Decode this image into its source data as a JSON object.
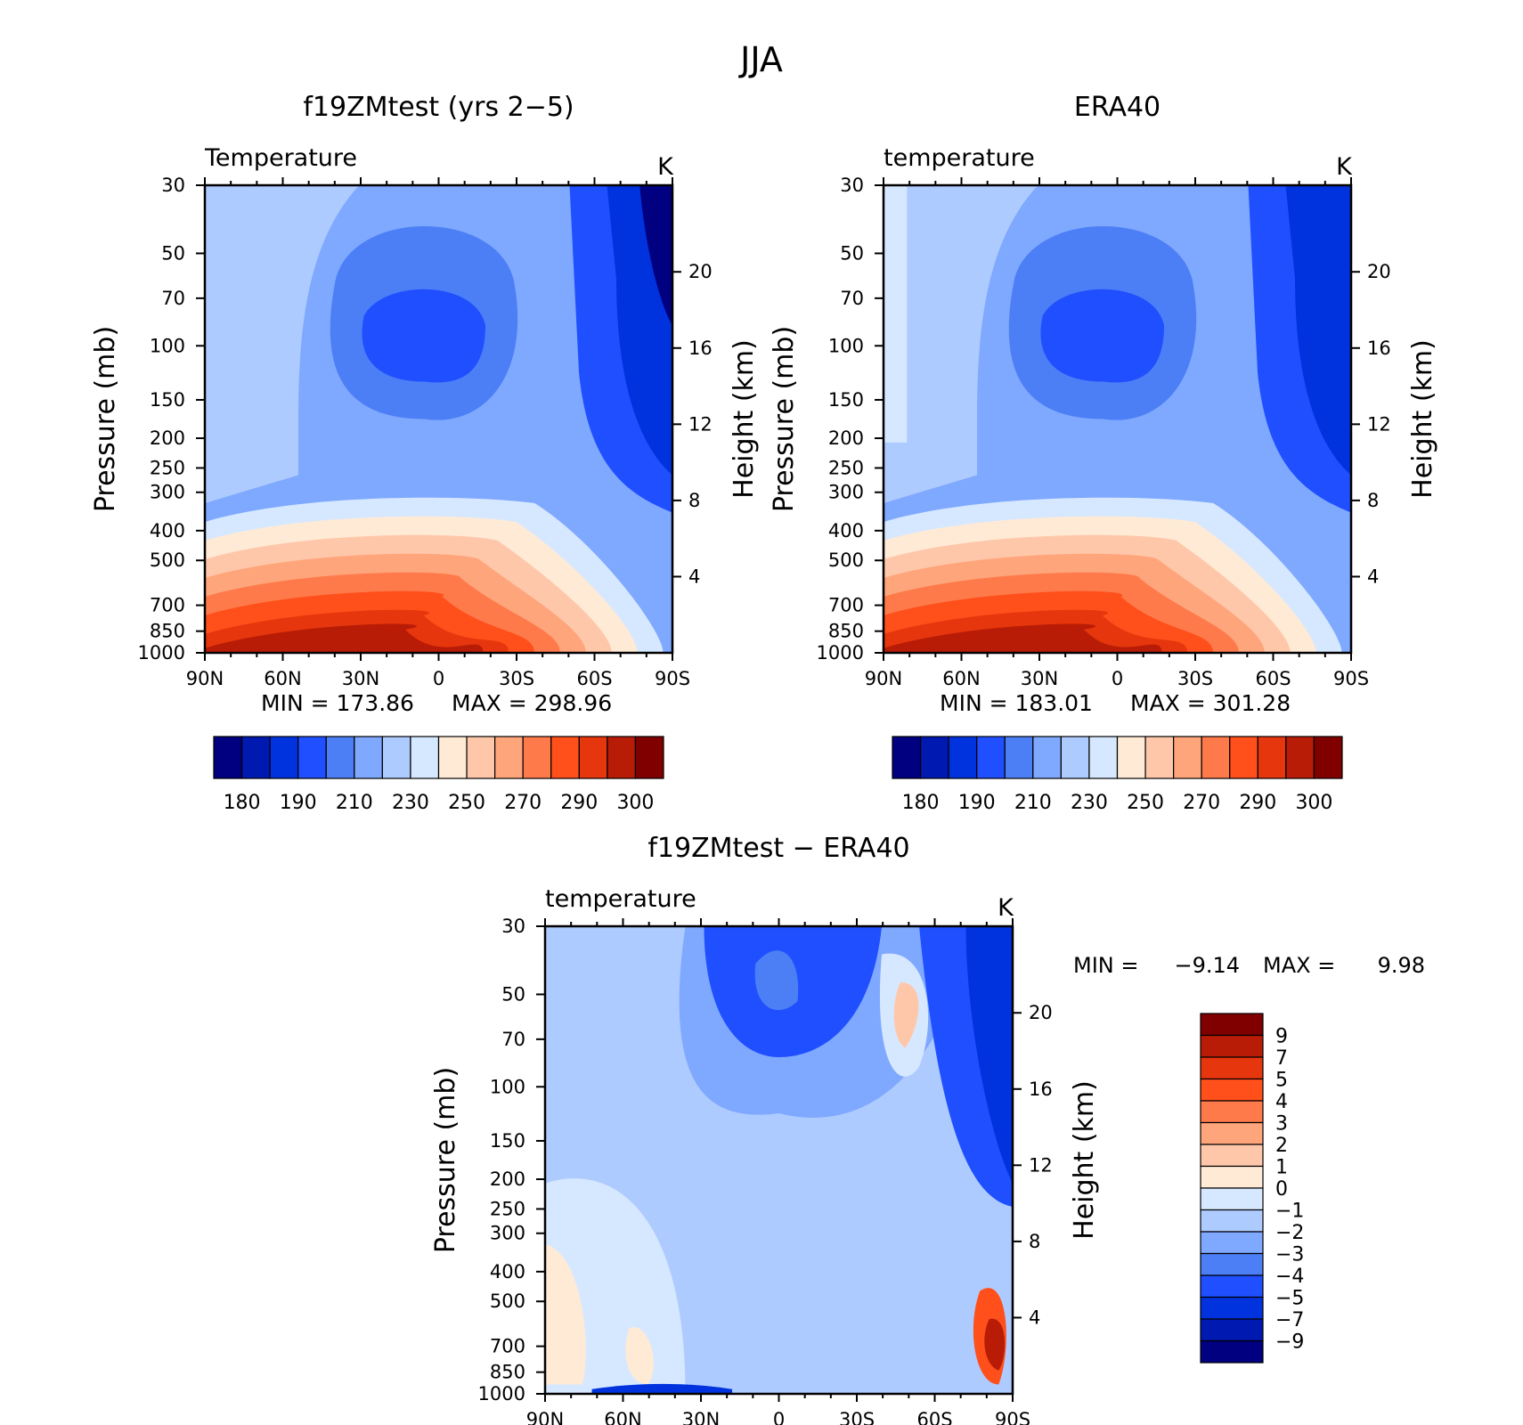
{
  "figure": {
    "title": "JJA"
  },
  "chart_data": [
    {
      "type": "heatmap",
      "title": "f19ZMtest (yrs 2−5)",
      "subtitle": "Temperature",
      "units": "K",
      "xlabel": "",
      "ylabel": "Pressure (mb)",
      "y2label": "Height (km)",
      "x_ticks": [
        "90N",
        "60N",
        "30N",
        "0",
        "30S",
        "60S",
        "90S"
      ],
      "y_ticks": [
        30,
        50,
        70,
        100,
        150,
        200,
        250,
        300,
        400,
        500,
        700,
        850,
        1000
      ],
      "y2_ticks": [
        20,
        16,
        12,
        8,
        4
      ],
      "y_scale": "log",
      "ylim": [
        1000,
        30
      ],
      "min_label": "MIN = 173.86",
      "max_label": "MAX = 298.96",
      "min": 173.86,
      "max": 298.96,
      "colorbar": {
        "labels": [
          "180",
          "190",
          "210",
          "230",
          "250",
          "270",
          "290",
          "300"
        ],
        "colors": [
          "#000080",
          "#0019b0",
          "#0033dd",
          "#1f4fff",
          "#4c7ff5",
          "#7fa8ff",
          "#aecbff",
          "#d6e8ff",
          "#ffead6",
          "#ffc7aa",
          "#ffa57c",
          "#ff7a4a",
          "#ff4f1a",
          "#e6360d",
          "#b81c06",
          "#800000"
        ]
      }
    },
    {
      "type": "heatmap",
      "title": "ERA40",
      "subtitle": "temperature",
      "units": "K",
      "xlabel": "",
      "ylabel": "Pressure (mb)",
      "y2label": "Height (km)",
      "x_ticks": [
        "90N",
        "60N",
        "30N",
        "0",
        "30S",
        "60S",
        "90S"
      ],
      "y_ticks": [
        30,
        50,
        70,
        100,
        150,
        200,
        250,
        300,
        400,
        500,
        700,
        850,
        1000
      ],
      "y2_ticks": [
        20,
        16,
        12,
        8,
        4
      ],
      "y_scale": "log",
      "ylim": [
        1000,
        30
      ],
      "min_label": "MIN = 183.01",
      "max_label": "MAX = 301.28",
      "min": 183.01,
      "max": 301.28,
      "colorbar": {
        "labels": [
          "180",
          "190",
          "210",
          "230",
          "250",
          "270",
          "290",
          "300"
        ],
        "colors": [
          "#000080",
          "#0019b0",
          "#0033dd",
          "#1f4fff",
          "#4c7ff5",
          "#7fa8ff",
          "#aecbff",
          "#d6e8ff",
          "#ffead6",
          "#ffc7aa",
          "#ffa57c",
          "#ff7a4a",
          "#ff4f1a",
          "#e6360d",
          "#b81c06",
          "#800000"
        ]
      }
    },
    {
      "type": "heatmap",
      "title": "f19ZMtest − ERA40",
      "subtitle": "temperature",
      "units": "K",
      "xlabel": "",
      "ylabel": "Pressure (mb)",
      "y2label": "Height (km)",
      "x_ticks": [
        "90N",
        "60N",
        "30N",
        "0",
        "30S",
        "60S",
        "90S"
      ],
      "y_ticks": [
        30,
        50,
        70,
        100,
        150,
        200,
        250,
        300,
        400,
        500,
        700,
        850,
        1000
      ],
      "y2_ticks": [
        20,
        16,
        12,
        8,
        4
      ],
      "y_scale": "log",
      "ylim": [
        1000,
        30
      ],
      "min_label": "MIN =",
      "min_value": "−9.14",
      "max_label": "MAX =",
      "max_value": "9.98",
      "min": -9.14,
      "max": 9.98,
      "colorbar": {
        "labels": [
          "9",
          "7",
          "5",
          "4",
          "3",
          "2",
          "1",
          "0",
          "−1",
          "−2",
          "−3",
          "−4",
          "−5",
          "−7",
          "−9"
        ],
        "colors": [
          "#800000",
          "#b81c06",
          "#e6360d",
          "#ff4f1a",
          "#ff7a4a",
          "#ffa57c",
          "#ffc7aa",
          "#ffead6",
          "#d6e8ff",
          "#aecbff",
          "#7fa8ff",
          "#4c7ff5",
          "#1f4fff",
          "#0033dd",
          "#0019b0",
          "#000080"
        ]
      }
    }
  ]
}
